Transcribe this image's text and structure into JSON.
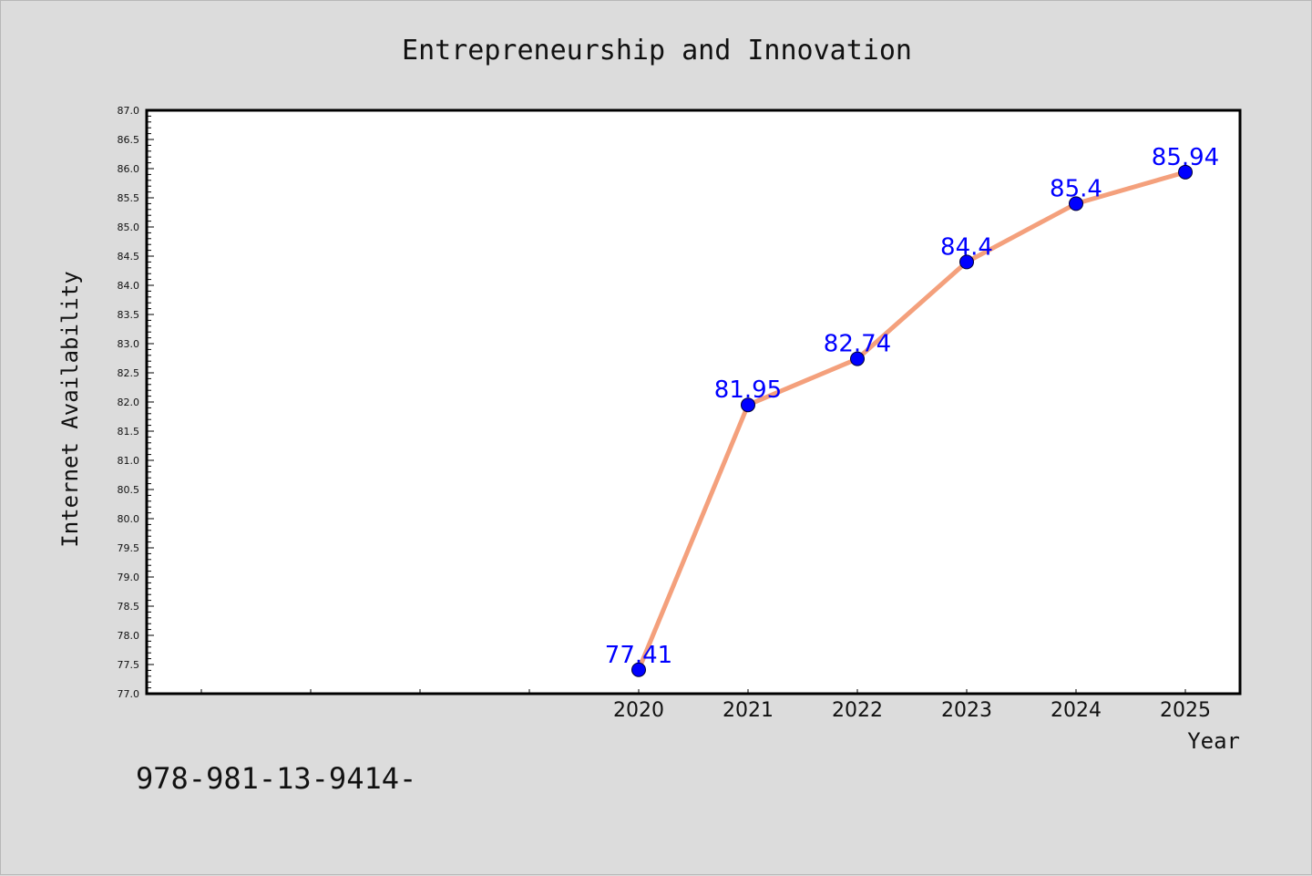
{
  "chart_data": {
    "type": "line",
    "title": "Entrepreneurship and Innovation",
    "xlabel": "Year",
    "ylabel": "Internet Availability",
    "x": [
      "2020",
      "2021",
      "2022",
      "2023",
      "2024",
      "2025"
    ],
    "series": [
      {
        "values": [
          77.41,
          81.95,
          82.74,
          84.4,
          85.4,
          85.94
        ]
      }
    ],
    "data_labels": [
      "77.41",
      "81.95",
      "82.74",
      "84.4",
      "85.4",
      "85.94"
    ],
    "ylim": [
      77.0,
      87.0
    ],
    "ytick_step": 0.5,
    "y_minor_step": 0.1,
    "x_slots_before_first": 4,
    "grid": false,
    "colors": {
      "line": "#f4a07c",
      "marker": "#0000ff",
      "label": "#0000ff",
      "plot_bg": "#ffffff",
      "figure_bg": "#dcdcdc"
    }
  },
  "footer_text": "978-981-13-9414-"
}
